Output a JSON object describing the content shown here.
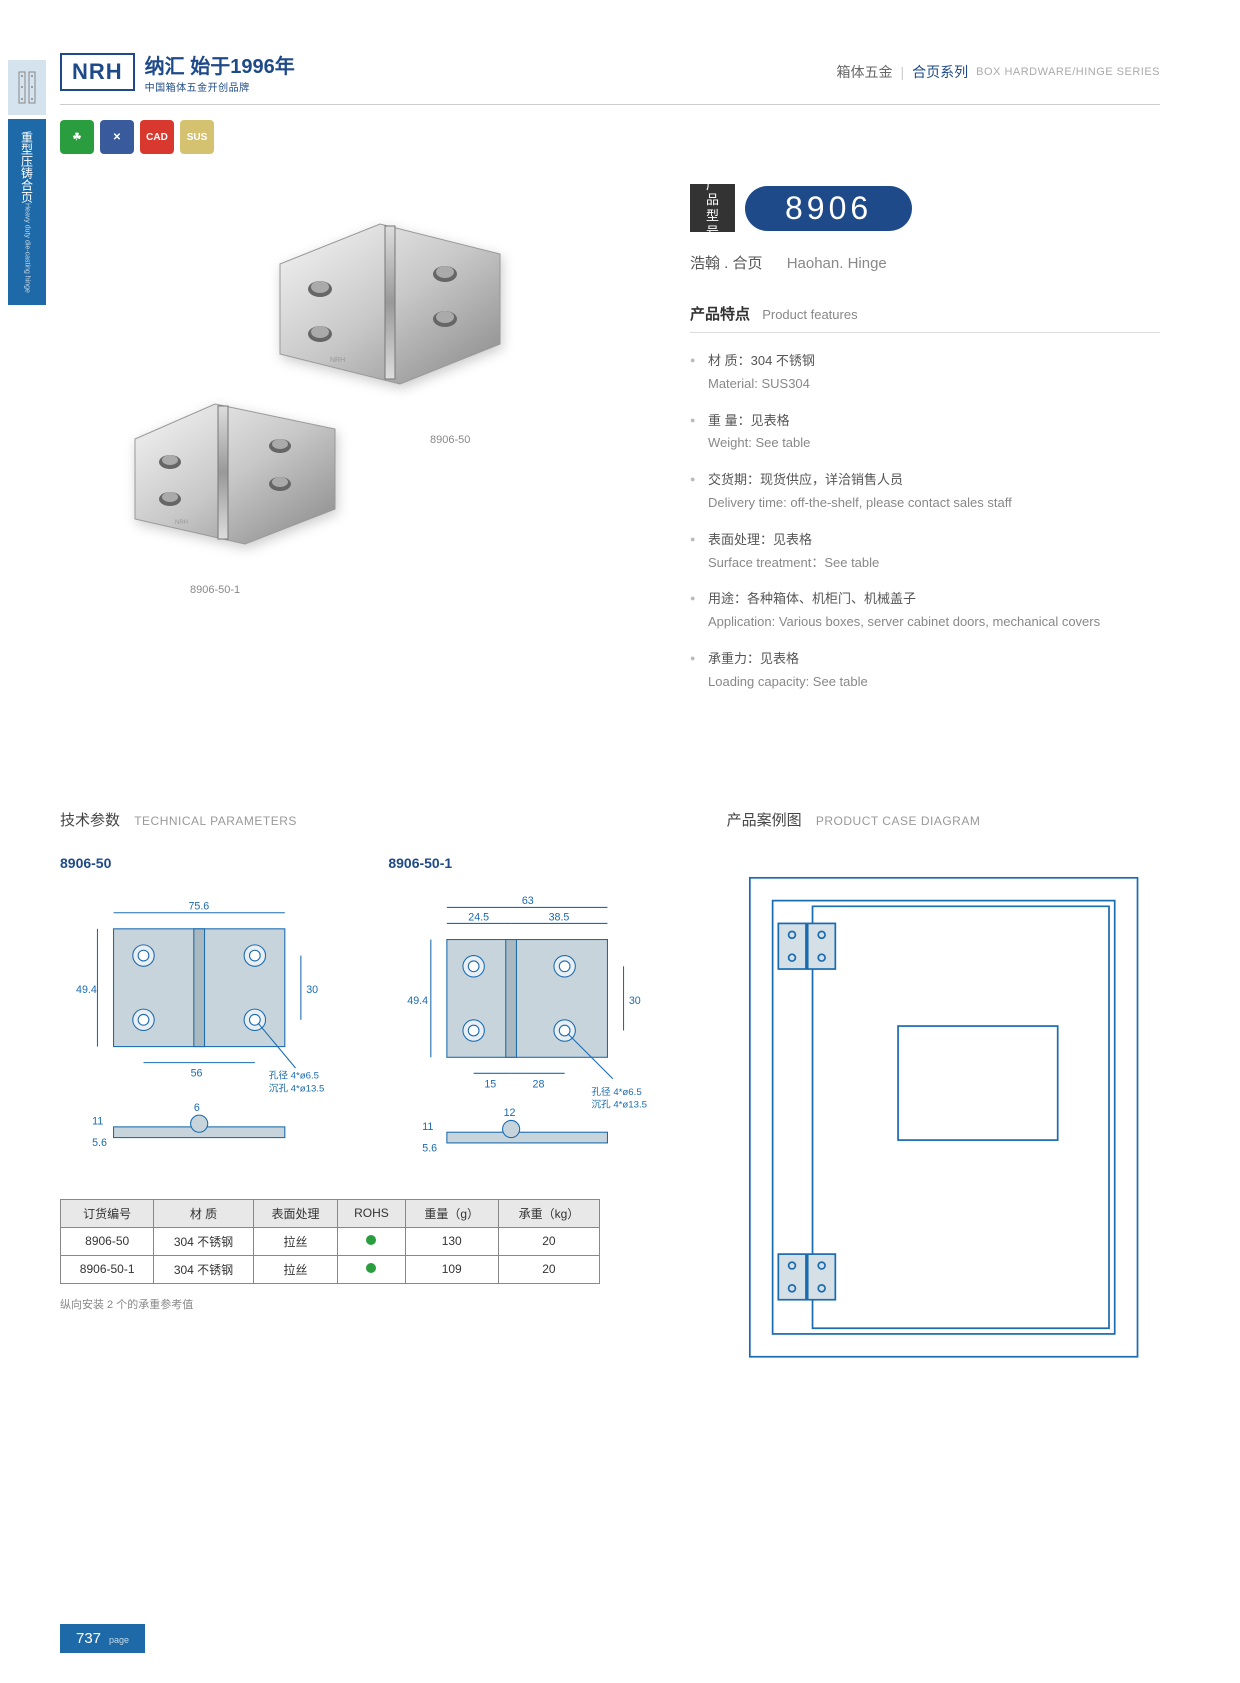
{
  "header": {
    "logo_brand": "NRH",
    "logo_cn": "纳汇 始于1996年",
    "logo_sub": "中国箱体五金开创品牌",
    "right_cn": "箱体五金",
    "right_blue": "合页系列",
    "right_en": "BOX HARDWARE/HINGE SERIES"
  },
  "side_tab": {
    "cn": "重型压铸合页",
    "en": "Heavy duty die-casting hinge"
  },
  "badges": [
    {
      "bg": "#2a9d3f",
      "text": "☘"
    },
    {
      "bg": "#3a5b9b",
      "text": "✕"
    },
    {
      "bg": "#d9382e",
      "text": "CAD"
    },
    {
      "bg": "#d4c270",
      "text": "SUS"
    }
  ],
  "product_images": {
    "label1": "8906-50",
    "label2": "8906-50-1"
  },
  "model": {
    "label": "产品型号",
    "number": "8906"
  },
  "subtitle": {
    "cn": "浩翰 . 合页",
    "en": "Haohan. Hinge"
  },
  "features_title": {
    "cn": "产品特点",
    "en": "Product features"
  },
  "features": [
    {
      "cn": "材 质：304 不锈钢",
      "en": "Material: SUS304"
    },
    {
      "cn": "重 量：见表格",
      "en": "Weight: See table"
    },
    {
      "cn": "交货期：现货供应，详洽销售人员",
      "en": "Delivery time: off-the-shelf, please contact sales staff"
    },
    {
      "cn": "表面处理：见表格",
      "en": "Surface treatment：See table"
    },
    {
      "cn": "用途：各种箱体、机柜门、机械盖子",
      "en": "Application: Various boxes, server cabinet doors, mechanical covers"
    },
    {
      "cn": "承重力：见表格",
      "en": "Loading capacity: See table"
    }
  ],
  "tech_title": {
    "cn": "技术参数",
    "en": "TECHNICAL PARAMETERS"
  },
  "case_title": {
    "cn": "产品案例图",
    "en": "PRODUCT CASE DIAGRAM"
  },
  "diagrams": [
    {
      "title": "8906-50",
      "dims": {
        "width": "75.6",
        "height": "49.4",
        "hole_h": "30",
        "hole_w": "56",
        "pin": "6",
        "thick": "5.6",
        "barrel": "11",
        "hole_note1": "孔径 4*ø6.5",
        "hole_note2": "沉孔 4*ø13.5"
      }
    },
    {
      "title": "8906-50-1",
      "dims": {
        "width": "63",
        "w1": "24.5",
        "w2": "38.5",
        "height": "49.4",
        "hole_h": "30",
        "h1": "15",
        "h2": "28",
        "pin": "12",
        "thick": "5.6",
        "barrel": "11",
        "hole_note1": "孔径 4*ø6.5",
        "hole_note2": "沉孔 4*ø13.5"
      }
    }
  ],
  "table": {
    "headers": [
      "订货编号",
      "材 质",
      "表面处理",
      "ROHS",
      "重量（g）",
      "承重（kg）"
    ],
    "rows": [
      [
        "8906-50",
        "304 不锈钢",
        "拉丝",
        "dot",
        "130",
        "20"
      ],
      [
        "8906-50-1",
        "304 不锈钢",
        "拉丝",
        "dot",
        "109",
        "20"
      ]
    ],
    "note": "纵向安装 2 个的承重参考值"
  },
  "page_number": "737",
  "page_label": "page",
  "colors": {
    "brand_blue": "#1e4a8a",
    "tab_blue": "#1e6aa8",
    "green": "#2a9d3f",
    "red": "#d9382e",
    "gold": "#d4c270"
  }
}
